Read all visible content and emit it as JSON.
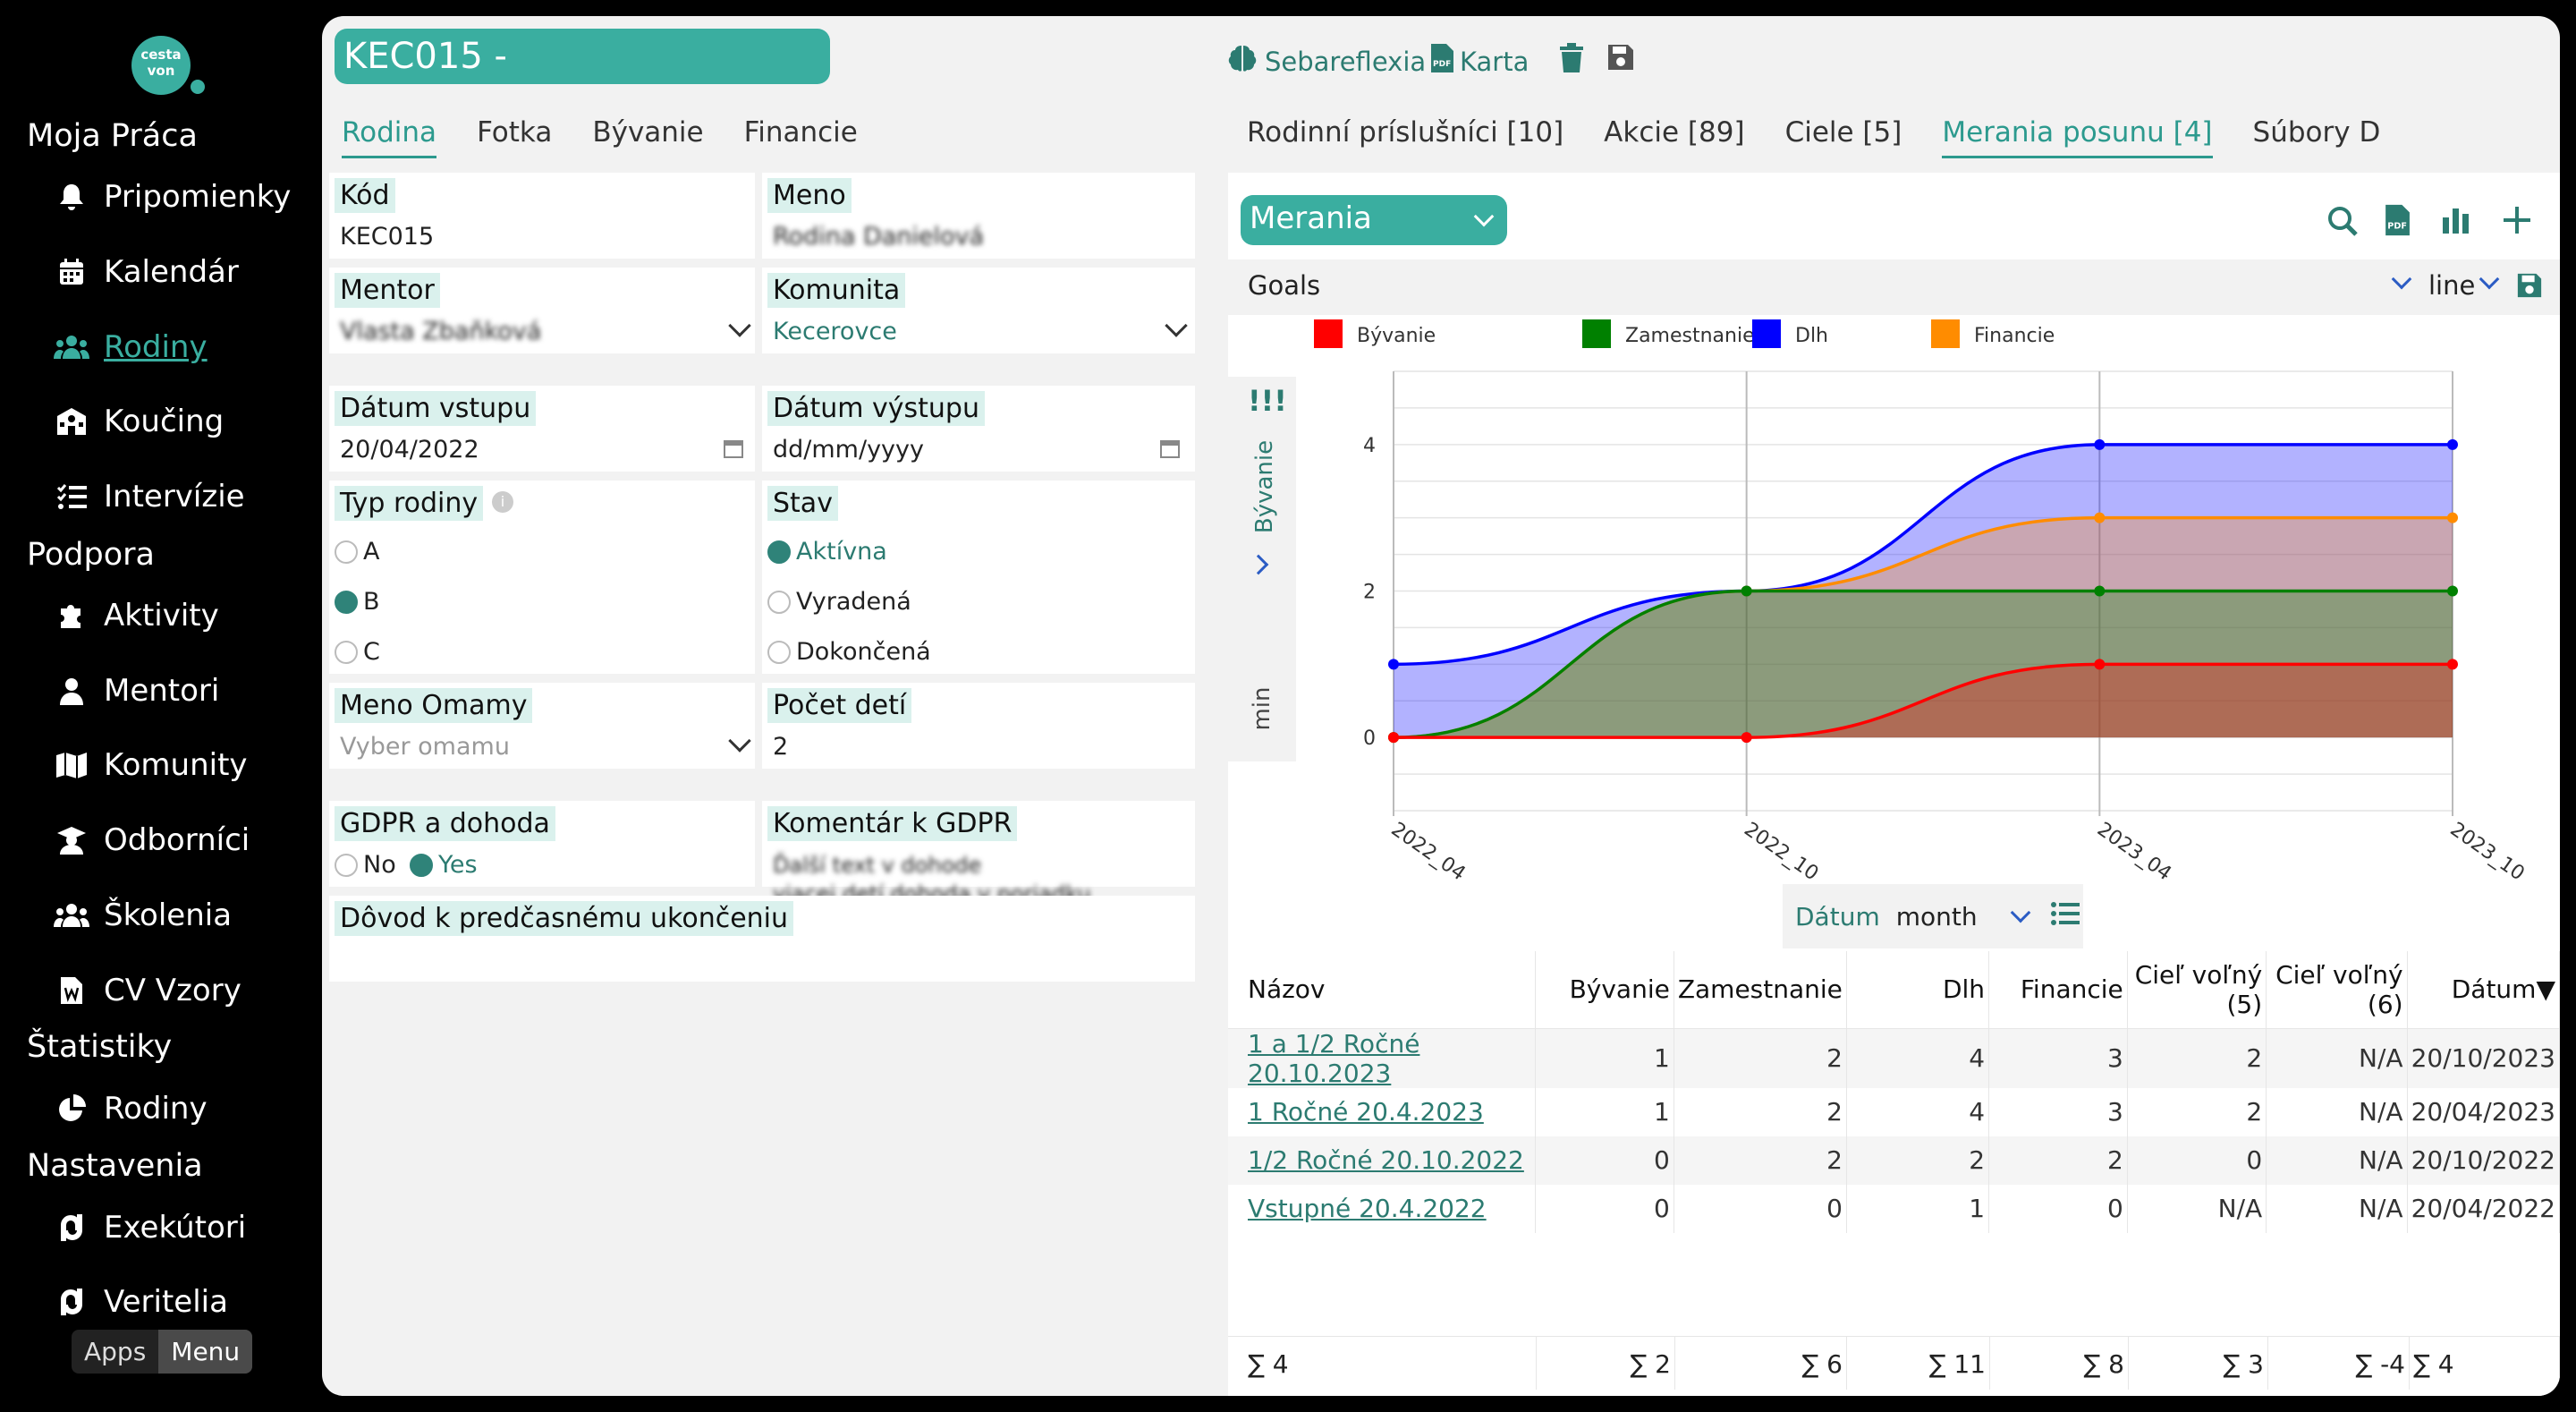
{
  "app": {
    "logo_line1": "cesta",
    "logo_line2": "von"
  },
  "sidebar": {
    "sections": [
      "Moja Práca",
      "Podpora",
      "Štatistiky",
      "Nastavenia"
    ],
    "items": [
      {
        "label": "Pripomienky",
        "icon": "bell-icon"
      },
      {
        "label": "Kalendár",
        "icon": "calendar-icon"
      },
      {
        "label": "Rodiny",
        "icon": "users-icon"
      },
      {
        "label": "Koučing",
        "icon": "school-icon"
      },
      {
        "label": "Intervízie",
        "icon": "list-check-icon"
      },
      {
        "label": "Aktivity",
        "icon": "puzzle-icon"
      },
      {
        "label": "Mentori",
        "icon": "user-icon"
      },
      {
        "label": "Komunity",
        "icon": "map-icon"
      },
      {
        "label": "Odborníci",
        "icon": "teacher-icon"
      },
      {
        "label": "Školenia",
        "icon": "group-icon"
      },
      {
        "label": "CV Vzory",
        "icon": "word-file-icon"
      },
      {
        "label": "Rodiny",
        "icon": "pie-chart-icon"
      },
      {
        "label": "Exekútori",
        "icon": "link-icon"
      },
      {
        "label": "Veritelia",
        "icon": "link-icon"
      }
    ],
    "apps": "Apps",
    "menu": "Menu"
  },
  "header": {
    "title": "KEC015 -",
    "sebareflexia": "Sebareflexia",
    "karta": "Karta"
  },
  "left_tabs": [
    "Rodina",
    "Fotka",
    "Bývanie",
    "Financie"
  ],
  "right_tabs": [
    "Rodinní príslušníci [10]",
    "Akcie [89]",
    "Ciele [5]",
    "Merania posunu [4]",
    "Súbory D"
  ],
  "form": {
    "kod_label": "Kód",
    "kod": "KEC015",
    "meno_label": "Meno",
    "meno": "Rodina Danielová",
    "mentor_label": "Mentor",
    "mentor": "Vlasta Zbaňková",
    "komunita_label": "Komunita",
    "komunita": "Kecerovce",
    "datum_vstupu_label": "Dátum vstupu",
    "datum_vstupu": "20/04/2022",
    "datum_vystupu_label": "Dátum výstupu",
    "datum_vystupu_ph": "dd/mm/yyyy",
    "typ_label": "Typ rodiny",
    "typ_options": [
      "A",
      "B",
      "C"
    ],
    "stav_label": "Stav",
    "stav_options": [
      "Aktívna",
      "Vyradená",
      "Dokončená"
    ],
    "omama_label": "Meno Omamy",
    "omama_ph": "Vyber omamu",
    "deti_label": "Počet detí",
    "deti": "2",
    "gdpr_label": "GDPR a dohoda",
    "gdpr_no": "No",
    "gdpr_yes": "Yes",
    "gdpr_kom_label": "Komentár k GDPR",
    "gdpr_kom1": "Ďalší text v dohode",
    "gdpr_kom2": "viacej detí dohoda v poriadku",
    "dovod_label": "Dôvod k predčasnému ukončeniu"
  },
  "panel": {
    "merania": "Merania",
    "goals": "Goals",
    "line": "line",
    "side_label": "Bývanie",
    "min": "min",
    "exclaim": "!!!",
    "datum": "Dátum",
    "month": "month"
  },
  "chart_data": {
    "type": "area",
    "categories": [
      "2022_04",
      "2022_10",
      "2023_04",
      "2023_10"
    ],
    "series": [
      {
        "name": "Bývanie",
        "color": "#ff0000",
        "values": [
          0,
          0,
          1,
          1
        ]
      },
      {
        "name": "Zamestnanie",
        "color": "#008000",
        "values": [
          0,
          2,
          2,
          2
        ]
      },
      {
        "name": "Dlh",
        "color": "#0000ff",
        "values": [
          1,
          2,
          4,
          4
        ]
      },
      {
        "name": "Financie",
        "color": "#ff8c00",
        "values": [
          0,
          2,
          3,
          3
        ]
      }
    ],
    "yticks": [
      0,
      2,
      4
    ],
    "ylim": [
      -1,
      5
    ]
  },
  "table": {
    "headers": [
      "Názov",
      "Bývanie",
      "Zamestnanie",
      "Dlh",
      "Financie",
      "Cieľ voľný (5)",
      "Cieľ voľný (6)",
      "Dátum▼"
    ],
    "rows": [
      [
        "1 a 1/2 Ročné 20.10.2023",
        "1",
        "2",
        "4",
        "3",
        "2",
        "N/A",
        "20/10/2023"
      ],
      [
        "1 Ročné 20.4.2023",
        "1",
        "2",
        "4",
        "3",
        "2",
        "N/A",
        "20/04/2023"
      ],
      [
        "1/2 Ročné 20.10.2022",
        "0",
        "2",
        "2",
        "2",
        "0",
        "N/A",
        "20/10/2022"
      ],
      [
        "Vstupné 20.4.2022",
        "0",
        "0",
        "1",
        "0",
        "N/A",
        "N/A",
        "20/04/2022"
      ]
    ],
    "sums": [
      "∑ 4",
      "∑ 2",
      "∑ 6",
      "∑ 11",
      "∑ 8",
      "∑ 3",
      "∑ -4",
      "∑ 4"
    ]
  }
}
